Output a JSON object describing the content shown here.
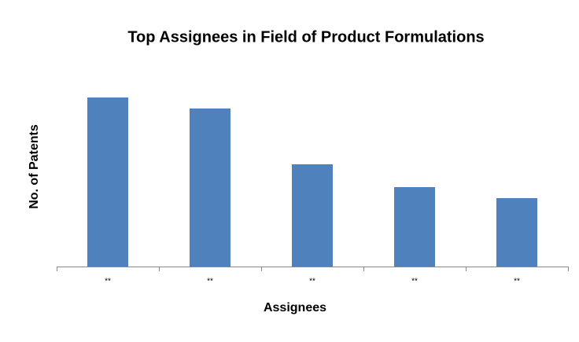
{
  "chart_data": {
    "type": "bar",
    "title": "Top Assignees in Field of Product Formulations",
    "x_label": "Assignees",
    "y_label": "No. of Patents",
    "categories": [
      "**",
      "**",
      "**",
      "**",
      "**"
    ],
    "values": [
      215,
      201,
      130,
      101,
      87
    ],
    "color": "#4f81bd"
  }
}
